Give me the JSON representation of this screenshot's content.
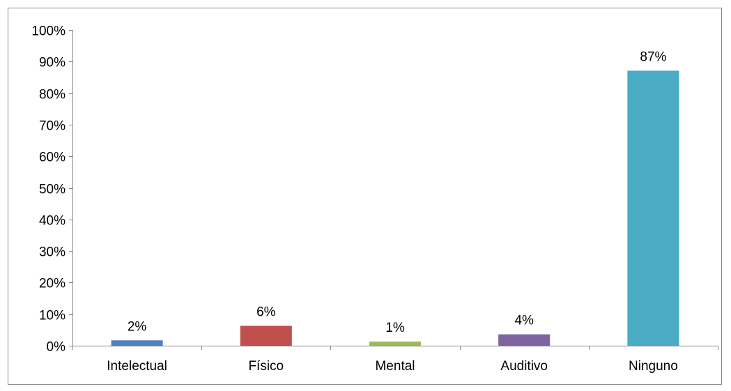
{
  "chart_data": {
    "type": "bar",
    "categories": [
      "Intelectual",
      "Físico",
      "Mental",
      "Auditivo",
      "Ninguno"
    ],
    "values": [
      1.7,
      6.3,
      1.3,
      3.6,
      87.1
    ],
    "data_labels": [
      "2%",
      "6%",
      "1%",
      "4%",
      "87%"
    ],
    "colors": [
      "#4f81bd",
      "#c0504d",
      "#9bbb59",
      "#8064a2",
      "#4bacc6"
    ],
    "ylim": [
      0,
      100
    ],
    "yticks": [
      0,
      10,
      20,
      30,
      40,
      50,
      60,
      70,
      80,
      90,
      100
    ],
    "ytick_labels": [
      "0%",
      "10%",
      "20%",
      "30%",
      "40%",
      "50%",
      "60%",
      "70%",
      "80%",
      "90%",
      "100%"
    ],
    "grid": false,
    "legend": "none",
    "title": "",
    "xlabel": "",
    "ylabel": ""
  }
}
